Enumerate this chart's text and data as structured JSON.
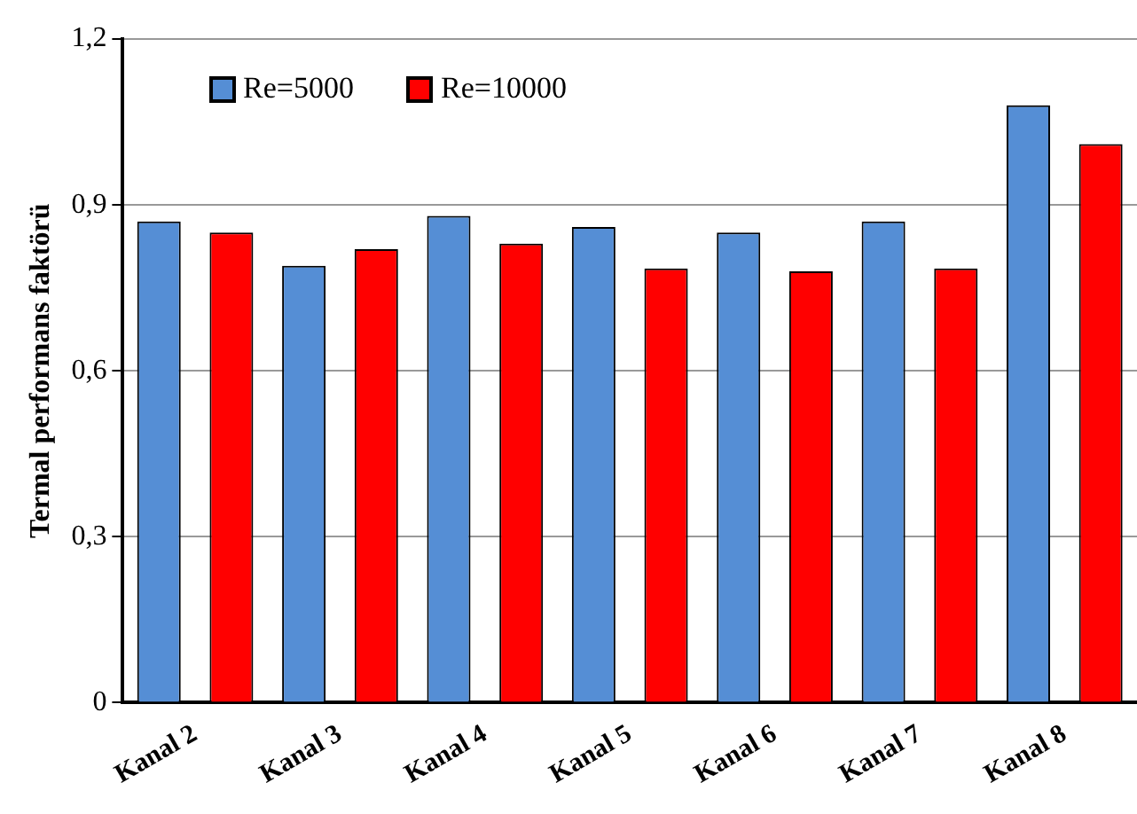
{
  "chart_data": {
    "type": "bar",
    "ylabel": "Termal performans faktörü",
    "categories": [
      "Kanal 2",
      "Kanal 3",
      "Kanal 4",
      "Kanal 5",
      "Kanal 6",
      "Kanal 7",
      "Kanal 8"
    ],
    "series": [
      {
        "name": "Re=5000",
        "color": "#558ed5",
        "values": [
          0.87,
          0.79,
          0.88,
          0.86,
          0.85,
          0.87,
          1.08
        ]
      },
      {
        "name": "Re=10000",
        "color": "#ff0000",
        "values": [
          0.85,
          0.82,
          0.83,
          0.785,
          0.78,
          0.785,
          1.01
        ]
      }
    ],
    "ylim": [
      0,
      1.2
    ],
    "yticks": [
      0,
      {
        "value": 0.3,
        "label": "0,3"
      },
      {
        "value": 0.6,
        "label": "0,6"
      },
      {
        "value": 0.9,
        "label": "0,9"
      },
      {
        "value": 1.2,
        "label": "1,2"
      }
    ],
    "grid": "y",
    "legend": "top left"
  }
}
